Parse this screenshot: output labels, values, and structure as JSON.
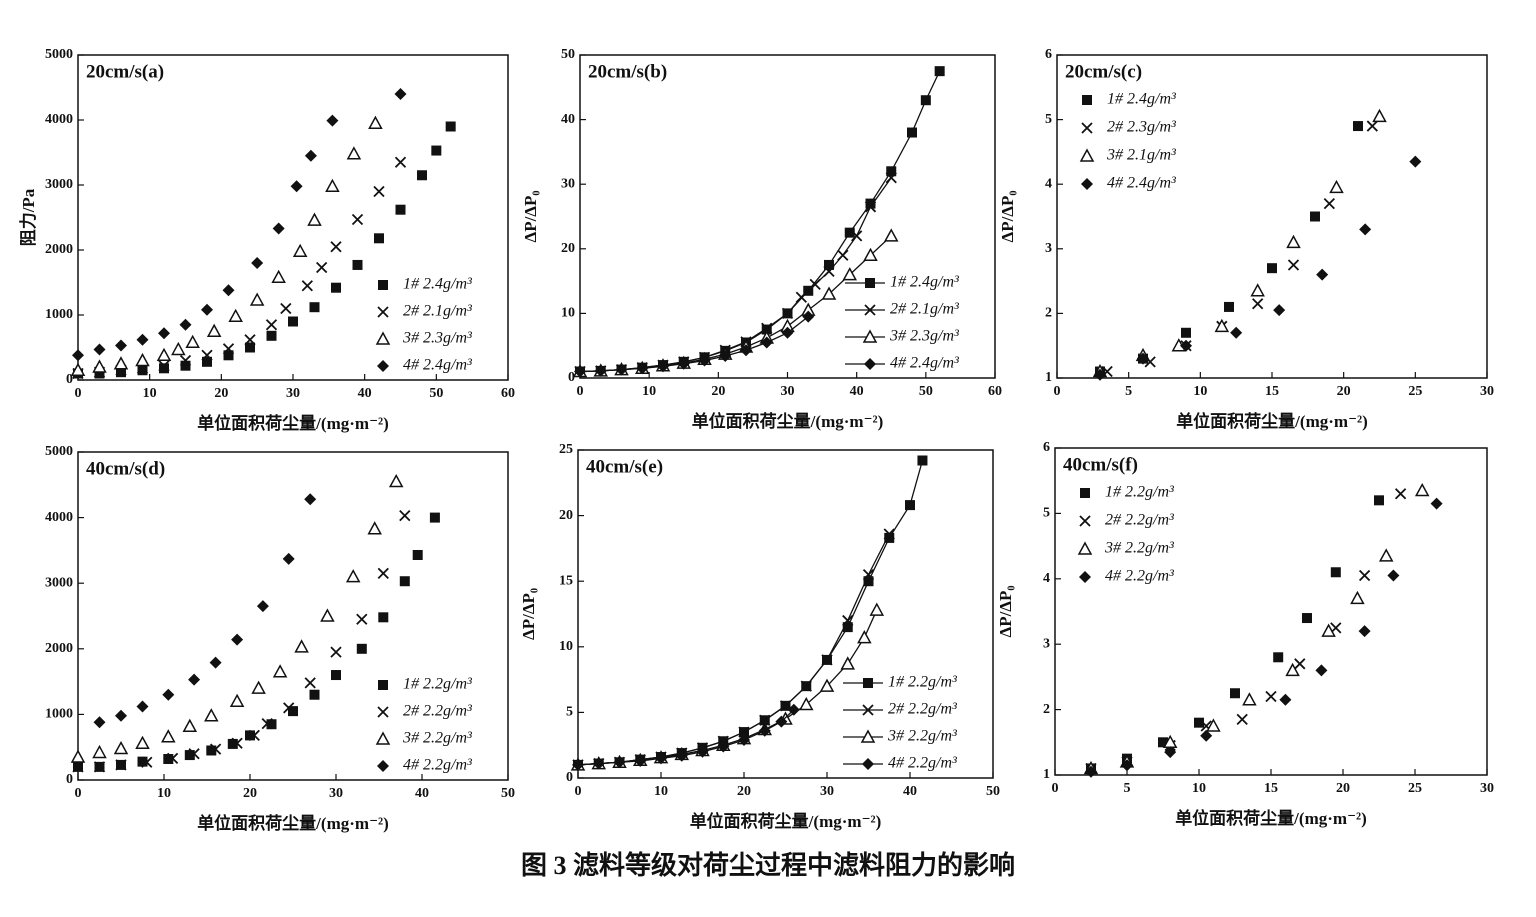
{
  "chart_data": [
    {
      "type": "scatter",
      "title": "20cm/s(a)",
      "x_label": "单位面积荷尘量/(mg·m⁻²)",
      "y_label": "阻力/Pa",
      "xlim": [
        0,
        60
      ],
      "xticks": [
        0,
        10,
        20,
        30,
        40,
        50,
        60
      ],
      "ylim": [
        0,
        5000
      ],
      "yticks": [
        0,
        1000,
        2000,
        3000,
        4000,
        5000
      ],
      "legend": "lower-right",
      "color": "#111",
      "series": [
        {
          "name": "1# 2.4g/m³",
          "marker": "square",
          "x": [
            0,
            3,
            6,
            9,
            12,
            15,
            18,
            21,
            24,
            27,
            30,
            33,
            36,
            39,
            42,
            45,
            48,
            50,
            52
          ],
          "values": [
            100,
            100,
            120,
            150,
            180,
            220,
            280,
            380,
            500,
            680,
            900,
            1120,
            1420,
            1770,
            2180,
            2620,
            3150,
            3530,
            3900
          ]
        },
        {
          "name": "2# 2.1g/m³",
          "marker": "x",
          "x": [
            0,
            3,
            6,
            9,
            12,
            15,
            18,
            21,
            24,
            27,
            29,
            32,
            34,
            36,
            39,
            42,
            45
          ],
          "values": [
            100,
            120,
            150,
            180,
            220,
            300,
            380,
            480,
            620,
            850,
            1100,
            1450,
            1730,
            2050,
            2470,
            2900,
            3350
          ]
        },
        {
          "name": "3# 2.3g/m³",
          "marker": "triangle",
          "x": [
            0,
            3,
            6,
            9,
            12,
            14,
            16,
            19,
            22,
            25,
            28,
            31,
            33,
            35.5,
            38.5,
            41.5
          ],
          "values": [
            150,
            200,
            250,
            300,
            380,
            470,
            580,
            750,
            980,
            1230,
            1580,
            1980,
            2460,
            2980,
            3480,
            3950
          ]
        },
        {
          "name": "4# 2.4g/m³",
          "marker": "diamond",
          "x": [
            0,
            3,
            6,
            9,
            12,
            15,
            18,
            21,
            25,
            28,
            30.5,
            32.5,
            35.5,
            45
          ],
          "values": [
            380,
            470,
            530,
            620,
            720,
            850,
            1080,
            1380,
            1800,
            2330,
            2980,
            3450,
            3990,
            4400
          ]
        }
      ]
    },
    {
      "type": "line",
      "title": "20cm/s(b)",
      "x_label": "单位面积荷尘量/(mg·m⁻²)",
      "y_label": "ΔP/ΔP₀",
      "xlim": [
        0,
        60
      ],
      "xticks": [
        0,
        10,
        20,
        30,
        40,
        50,
        60
      ],
      "ylim": [
        0,
        50
      ],
      "yticks": [
        0,
        10,
        20,
        30,
        40,
        50
      ],
      "legend": "lower-right",
      "color": "#111",
      "series": [
        {
          "name": "1# 2.4g/m³",
          "marker": "square",
          "x": [
            0,
            3,
            6,
            9,
            12,
            15,
            18,
            21,
            24,
            27,
            30,
            33,
            36,
            39,
            42,
            45,
            48,
            50,
            52
          ],
          "values": [
            1,
            1.1,
            1.3,
            1.6,
            2,
            2.5,
            3.2,
            4.2,
            5.5,
            7.5,
            10,
            13.5,
            17.5,
            22.5,
            27,
            32,
            38,
            43,
            47.5
          ]
        },
        {
          "name": "2# 2.1g/m³",
          "marker": "x",
          "x": [
            0,
            3,
            6,
            9,
            12,
            15,
            18,
            21,
            24,
            27,
            30,
            32,
            34,
            36,
            38,
            40,
            42,
            45
          ],
          "values": [
            1,
            1.1,
            1.3,
            1.6,
            2,
            2.5,
            3.2,
            4.3,
            5.6,
            7.7,
            10,
            12.5,
            14.5,
            16.5,
            19,
            22,
            26.5,
            31
          ]
        },
        {
          "name": "3# 2.3g/m³",
          "marker": "triangle",
          "x": [
            0,
            3,
            6,
            9,
            12,
            15,
            18,
            21,
            24,
            27,
            30,
            33,
            36,
            39,
            42,
            45
          ],
          "values": [
            1,
            1.1,
            1.3,
            1.5,
            1.9,
            2.3,
            2.9,
            3.7,
            4.8,
            6.2,
            8,
            10.5,
            13,
            16,
            19,
            22
          ]
        },
        {
          "name": "4# 2.4g/m³",
          "marker": "diamond",
          "x": [
            0,
            3,
            6,
            9,
            12,
            15,
            18,
            21,
            24,
            27,
            30,
            33
          ],
          "values": [
            1,
            1.1,
            1.3,
            1.5,
            1.8,
            2.2,
            2.7,
            3.4,
            4.3,
            5.5,
            7,
            9.5
          ]
        }
      ]
    },
    {
      "type": "scatter",
      "title": "20cm/s(c)",
      "x_label": "单位面积荷尘量/(mg·m⁻²)",
      "y_label": "ΔP/ΔP₀",
      "xlim": [
        0,
        30
      ],
      "xticks": [
        0,
        5,
        10,
        15,
        20,
        25,
        30
      ],
      "ylim": [
        1,
        6
      ],
      "yticks": [
        1,
        2,
        3,
        4,
        5,
        6
      ],
      "legend": "upper-left",
      "color": "#111",
      "series": [
        {
          "name": "1# 2.4g/m³",
          "marker": "square",
          "x": [
            3,
            6,
            9,
            12,
            15,
            18,
            21
          ],
          "values": [
            1.1,
            1.3,
            1.7,
            2.1,
            2.7,
            3.5,
            4.9
          ]
        },
        {
          "name": "2# 2.3g/m³",
          "marker": "x",
          "x": [
            3.5,
            6.5,
            9,
            11.5,
            14,
            16.5,
            19,
            22
          ],
          "values": [
            1.1,
            1.25,
            1.5,
            1.8,
            2.15,
            2.75,
            3.7,
            4.9
          ]
        },
        {
          "name": "3# 2.1g/m³",
          "marker": "triangle",
          "x": [
            3,
            6,
            8.5,
            11.5,
            14,
            16.5,
            19.5,
            22.5
          ],
          "values": [
            1.1,
            1.35,
            1.5,
            1.8,
            2.35,
            3.1,
            3.95,
            5.05
          ]
        },
        {
          "name": "4# 2.4g/m³",
          "marker": "diamond",
          "x": [
            3,
            6,
            9,
            12.5,
            15.5,
            18.5,
            21.5,
            25
          ],
          "values": [
            1.05,
            1.3,
            1.5,
            1.7,
            2.05,
            2.6,
            3.3,
            4.35
          ]
        }
      ]
    },
    {
      "type": "scatter",
      "title": "40cm/s(d)",
      "x_label": "单位面积荷尘量/(mg·m⁻²)",
      "xlim": [
        0,
        50
      ],
      "xticks": [
        0,
        10,
        20,
        30,
        40,
        50
      ],
      "ylim": [
        0,
        5000
      ],
      "yticks": [
        0,
        1000,
        2000,
        3000,
        4000,
        5000
      ],
      "legend": "lower-right",
      "color": "#111",
      "series": [
        {
          "name": "1# 2.2g/m³",
          "marker": "square",
          "x": [
            0,
            2.5,
            5,
            7.5,
            10.5,
            13,
            15.5,
            18,
            20,
            22.5,
            25,
            27.5,
            30,
            33,
            35.5,
            38,
            39.5,
            41.5
          ],
          "values": [
            200,
            200,
            230,
            280,
            320,
            380,
            450,
            550,
            680,
            850,
            1050,
            1300,
            1600,
            2000,
            2480,
            3030,
            3430,
            4000
          ]
        },
        {
          "name": "2# 2.2g/m³",
          "marker": "x",
          "x": [
            0,
            2.5,
            5,
            8,
            11,
            13.5,
            16,
            18.5,
            20.5,
            22,
            24.5,
            27,
            30,
            33,
            35.5,
            38
          ],
          "values": [
            200,
            200,
            230,
            270,
            330,
            400,
            470,
            560,
            680,
            860,
            1100,
            1480,
            1950,
            2450,
            3150,
            4030
          ]
        },
        {
          "name": "3# 2.2g/m³",
          "marker": "triangle",
          "x": [
            0,
            2.5,
            5,
            7.5,
            10.5,
            13,
            15.5,
            18.5,
            21,
            23.5,
            26,
            29,
            32,
            34.5,
            37
          ],
          "values": [
            350,
            420,
            480,
            560,
            660,
            820,
            980,
            1200,
            1400,
            1650,
            2030,
            2500,
            3100,
            3830,
            4550
          ]
        },
        {
          "name": "4# 2.2g/m³",
          "marker": "diamond",
          "x": [
            2.5,
            5,
            7.5,
            10.5,
            13.5,
            16,
            18.5,
            21.5,
            24.5,
            27
          ],
          "values": [
            880,
            980,
            1120,
            1300,
            1530,
            1790,
            2140,
            2650,
            3370,
            4280
          ]
        }
      ]
    },
    {
      "type": "line",
      "title": "40cm/s(e)",
      "x_label": "单位面积荷尘量/(mg·m⁻²)",
      "y_label": "ΔP/ΔP₀",
      "xlim": [
        0,
        50
      ],
      "xticks": [
        0,
        10,
        20,
        30,
        40,
        50
      ],
      "ylim": [
        0,
        25
      ],
      "yticks": [
        0,
        5,
        10,
        15,
        20,
        25
      ],
      "legend": "lower-right",
      "color": "#111",
      "series": [
        {
          "name": "1# 2.2g/m³",
          "marker": "square",
          "x": [
            0,
            2.5,
            5,
            7.5,
            10,
            12.5,
            15,
            17.5,
            20,
            22.5,
            25,
            27.5,
            30,
            32.5,
            35,
            37.5,
            40,
            41.5
          ],
          "values": [
            1,
            1.1,
            1.2,
            1.4,
            1.6,
            1.9,
            2.3,
            2.8,
            3.5,
            4.4,
            5.5,
            7,
            9,
            11.5,
            15,
            18.3,
            20.8,
            24.2
          ]
        },
        {
          "name": "2# 2.2g/m³",
          "marker": "x",
          "x": [
            0,
            2.5,
            5,
            7.5,
            10,
            12.5,
            15,
            17.5,
            20,
            22.5,
            25,
            27.5,
            30,
            32.5,
            35,
            37.5
          ],
          "values": [
            1,
            1.1,
            1.2,
            1.4,
            1.6,
            1.9,
            2.3,
            2.8,
            3.5,
            4.4,
            5.5,
            7,
            9,
            12,
            15.5,
            18.6
          ]
        },
        {
          "name": "3# 2.2g/m³",
          "marker": "triangle",
          "x": [
            0,
            2.5,
            5,
            7.5,
            10,
            12.5,
            15,
            17.5,
            20,
            22.5,
            25,
            27.5,
            30,
            32.5,
            34.5,
            36
          ],
          "values": [
            1,
            1.1,
            1.2,
            1.35,
            1.55,
            1.8,
            2.1,
            2.5,
            3,
            3.7,
            4.5,
            5.6,
            7,
            8.7,
            10.7,
            12.8
          ]
        },
        {
          "name": "4# 2.2g/m³",
          "marker": "diamond",
          "x": [
            0,
            2.5,
            5,
            7.5,
            10,
            12.5,
            15,
            17.5,
            20,
            22.5,
            24.5,
            26
          ],
          "values": [
            1,
            1.1,
            1.2,
            1.3,
            1.5,
            1.7,
            2,
            2.4,
            2.9,
            3.6,
            4.3,
            5.2
          ]
        }
      ]
    },
    {
      "type": "scatter",
      "title": "40cm/s(f)",
      "x_label": "单位面积荷尘量/(mg·m⁻²)",
      "y_label": "ΔP/ΔP₀",
      "xlim": [
        0,
        30
      ],
      "xticks": [
        0,
        5,
        10,
        15,
        20,
        25,
        30
      ],
      "ylim": [
        1,
        6
      ],
      "yticks": [
        1,
        2,
        3,
        4,
        5,
        6
      ],
      "legend": "upper-left",
      "color": "#111",
      "series": [
        {
          "name": "1# 2.2g/m³",
          "marker": "square",
          "x": [
            2.5,
            5,
            7.5,
            10,
            12.5,
            15.5,
            17.5,
            19.5,
            22.5
          ],
          "values": [
            1.1,
            1.25,
            1.5,
            1.8,
            2.25,
            2.8,
            3.4,
            4.1,
            5.2
          ]
        },
        {
          "name": "2# 2.2g/m³",
          "marker": "x",
          "x": [
            2.5,
            5,
            8,
            10.5,
            13,
            15,
            17,
            19.5,
            21.5,
            24
          ],
          "values": [
            1.1,
            1.2,
            1.45,
            1.75,
            1.85,
            2.2,
            2.7,
            3.25,
            4.05,
            5.3
          ]
        },
        {
          "name": "3# 2.2g/m³",
          "marker": "triangle",
          "x": [
            2.5,
            5,
            8,
            11,
            13.5,
            16.5,
            19,
            21,
            23,
            25.5
          ],
          "values": [
            1.1,
            1.2,
            1.5,
            1.75,
            2.15,
            2.6,
            3.2,
            3.7,
            4.35,
            5.35
          ]
        },
        {
          "name": "4# 2.2g/m³",
          "marker": "diamond",
          "x": [
            2.5,
            5,
            8,
            10.5,
            16,
            18.5,
            21.5,
            23.5,
            26.5
          ],
          "values": [
            1.05,
            1.15,
            1.35,
            1.6,
            2.15,
            2.6,
            3.2,
            4.05,
            5.15
          ]
        }
      ]
    }
  ],
  "caption": "图 3  滤料等级对荷尘过程中滤料阻力的影响"
}
